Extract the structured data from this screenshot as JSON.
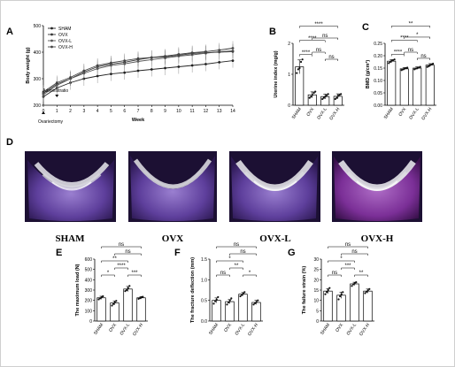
{
  "panel_letters": {
    "a": "A",
    "b": "B",
    "c": "C",
    "d": "D",
    "e": "E",
    "f": "F",
    "g": "G"
  },
  "micro_ct_labels": [
    "SHAM",
    "OVX",
    "OVX-L",
    "OVX-H"
  ],
  "chart_data": [
    {
      "id": "A",
      "type": "line",
      "xlabel": "Week",
      "ylabel": "Body weight (g)",
      "x": [
        0,
        1,
        2,
        3,
        4,
        5,
        6,
        7,
        8,
        9,
        10,
        11,
        12,
        13,
        14
      ],
      "xticks": [
        "0",
        "1",
        "2",
        "3",
        "4",
        "5",
        "6",
        "7",
        "8",
        "9",
        "10",
        "11",
        "12",
        "13",
        "14"
      ],
      "yticks": [
        200,
        300,
        400,
        500
      ],
      "ylim": [
        200,
        500
      ],
      "annotations": [
        "Ovariectomy",
        "Administratio"
      ],
      "legend": "top-left",
      "series": [
        {
          "name": "SHAM",
          "values": [
            232,
            265,
            285,
            300,
            310,
            318,
            323,
            330,
            335,
            340,
            345,
            350,
            355,
            362,
            368
          ]
        },
        {
          "name": "OVX",
          "values": [
            245,
            280,
            300,
            325,
            345,
            355,
            362,
            372,
            380,
            385,
            392,
            398,
            402,
            408,
            415
          ]
        },
        {
          "name": "OVX-L",
          "values": [
            240,
            275,
            300,
            320,
            338,
            350,
            356,
            365,
            372,
            378,
            385,
            390,
            396,
            402,
            405
          ]
        },
        {
          "name": "OVX-H",
          "values": [
            250,
            285,
            305,
            330,
            350,
            360,
            368,
            376,
            380,
            382,
            388,
            395,
            398,
            400,
            402
          ]
        }
      ]
    },
    {
      "id": "B",
      "type": "bar",
      "ylabel": "Uterine index (mg/g)",
      "categories": [
        "SHAM",
        "OVX",
        "OVX-L",
        "OVX-H"
      ],
      "values": [
        1.55,
        0.42,
        0.35,
        0.36
      ],
      "errors": [
        0.28,
        0.12,
        0.1,
        0.1
      ],
      "points": [
        [
          1.3,
          1.45,
          1.5,
          1.75,
          1.85
        ],
        [
          0.3,
          0.35,
          0.42,
          0.5,
          0.55
        ],
        [
          0.25,
          0.3,
          0.35,
          0.4,
          0.45
        ],
        [
          0.25,
          0.3,
          0.38,
          0.42,
          0.45
        ]
      ],
      "ylim": [
        0,
        2.5
      ],
      "yticks": [
        "0",
        "1",
        "2"
      ],
      "brackets": [
        {
          "from": 0,
          "to": 3,
          "label": "****"
        },
        {
          "from": 0,
          "to": 2,
          "label": "****"
        },
        {
          "from": 0,
          "to": 1,
          "label": "****"
        },
        {
          "from": 1,
          "to": 3,
          "label": "ns"
        },
        {
          "from": 1,
          "to": 2,
          "label": "ns"
        },
        {
          "from": 2,
          "to": 3,
          "label": "ns"
        }
      ]
    },
    {
      "id": "C",
      "type": "bar",
      "ylabel": "BMD (g/cm³)",
      "categories": [
        "SHAM",
        "OVX",
        "OVX-L",
        "OVX-H"
      ],
      "values": [
        0.178,
        0.147,
        0.15,
        0.162
      ],
      "errors": [
        0.006,
        0.005,
        0.005,
        0.006
      ],
      "points": [
        [
          0.17,
          0.175,
          0.18,
          0.182,
          0.185
        ],
        [
          0.142,
          0.145,
          0.148,
          0.15,
          0.152
        ],
        [
          0.145,
          0.148,
          0.15,
          0.152,
          0.155
        ],
        [
          0.155,
          0.158,
          0.162,
          0.165,
          0.168
        ]
      ],
      "ylim": [
        0,
        0.25
      ],
      "yticks": [
        "0.00",
        "0.05",
        "0.10",
        "0.15",
        "0.20",
        "0.25"
      ],
      "brackets": [
        {
          "from": 0,
          "to": 3,
          "label": "**"
        },
        {
          "from": 0,
          "to": 2,
          "label": "****"
        },
        {
          "from": 1,
          "to": 3,
          "label": "*"
        },
        {
          "from": 0,
          "to": 1,
          "label": "****"
        },
        {
          "from": 1,
          "to": 2,
          "label": "ns"
        },
        {
          "from": 2,
          "to": 3,
          "label": "ns"
        }
      ]
    },
    {
      "id": "E",
      "type": "bar",
      "ylabel": "The maximum load (N)",
      "categories": [
        "SHAM",
        "OVX",
        "OVX-L",
        "OVX-H"
      ],
      "values": [
        225,
        175,
        310,
        225
      ],
      "errors": [
        15,
        20,
        25,
        12
      ],
      "points": [
        [
          210,
          220,
          230,
          240
        ],
        [
          150,
          165,
          180,
          195
        ],
        [
          290,
          300,
          320,
          340
        ],
        [
          215,
          222,
          230,
          235
        ]
      ],
      "ylim": [
        0,
        600
      ],
      "yticks": [
        "0",
        "100",
        "200",
        "300",
        "400",
        "500",
        "600"
      ],
      "brackets": [
        {
          "from": 0,
          "to": 3,
          "label": "ns"
        },
        {
          "from": 0,
          "to": 2,
          "label": "**"
        },
        {
          "from": 0,
          "to": 1,
          "label": "*"
        },
        {
          "from": 1,
          "to": 2,
          "label": "****"
        },
        {
          "from": 2,
          "to": 3,
          "label": "***"
        },
        {
          "from": 1,
          "to": 3,
          "label": "ns"
        }
      ]
    },
    {
      "id": "F",
      "type": "bar",
      "ylabel": "The fracture deflection (mm)",
      "categories": [
        "SHAM",
        "OVX",
        "OVX-L",
        "OVX-H"
      ],
      "values": [
        0.5,
        0.47,
        0.65,
        0.45
      ],
      "errors": [
        0.06,
        0.05,
        0.04,
        0.05
      ],
      "points": [
        [
          0.42,
          0.48,
          0.52,
          0.58
        ],
        [
          0.4,
          0.45,
          0.5,
          0.55
        ],
        [
          0.6,
          0.63,
          0.67,
          0.7
        ],
        [
          0.4,
          0.43,
          0.46,
          0.5
        ]
      ],
      "ylim": [
        0,
        1.5
      ],
      "yticks": [
        "0.0",
        "0.5",
        "1.0",
        "1.5"
      ],
      "brackets": [
        {
          "from": 0,
          "to": 3,
          "label": "ns"
        },
        {
          "from": 0,
          "to": 2,
          "label": "*"
        },
        {
          "from": 1,
          "to": 3,
          "label": "ns"
        },
        {
          "from": 0,
          "to": 1,
          "label": "ns"
        },
        {
          "from": 1,
          "to": 2,
          "label": "**"
        },
        {
          "from": 2,
          "to": 3,
          "label": "*"
        }
      ]
    },
    {
      "id": "G",
      "type": "bar",
      "ylabel": "The failure strain (%)",
      "categories": [
        "SHAM",
        "OVX",
        "OVX-L",
        "OVX-H"
      ],
      "values": [
        14.5,
        12.5,
        18.0,
        14.5
      ],
      "errors": [
        1.2,
        1.5,
        0.8,
        1.0
      ],
      "points": [
        [
          13,
          14,
          15,
          16
        ],
        [
          10.5,
          12,
          13,
          14
        ],
        [
          17,
          17.8,
          18.3,
          18.8
        ],
        [
          13.5,
          14.2,
          14.8,
          15.5
        ]
      ],
      "ylim": [
        0,
        30
      ],
      "yticks": [
        "0",
        "5",
        "10",
        "15",
        "20",
        "25",
        "30"
      ],
      "brackets": [
        {
          "from": 0,
          "to": 3,
          "label": "ns"
        },
        {
          "from": 0,
          "to": 2,
          "label": "*"
        },
        {
          "from": 1,
          "to": 3,
          "label": "ns"
        },
        {
          "from": 0,
          "to": 1,
          "label": "ns"
        },
        {
          "from": 1,
          "to": 2,
          "label": "***"
        },
        {
          "from": 2,
          "to": 3,
          "label": "**"
        }
      ]
    }
  ]
}
